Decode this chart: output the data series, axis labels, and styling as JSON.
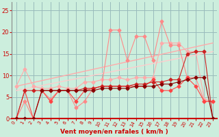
{
  "bg_color": "#cceedd",
  "grid_color": "#99bbbb",
  "xlabel": "Vent moyen/en rafales ( km/h )",
  "xlabel_color": "#cc0000",
  "tick_color": "#cc0000",
  "xlim": [
    -0.5,
    23.5
  ],
  "ylim": [
    0,
    27
  ],
  "yticks": [
    0,
    5,
    10,
    15,
    20,
    25
  ],
  "xticks": [
    0,
    1,
    2,
    3,
    4,
    5,
    6,
    7,
    8,
    9,
    10,
    11,
    12,
    13,
    14,
    15,
    16,
    17,
    18,
    19,
    20,
    21,
    22,
    23
  ],
  "line_pale1_x": [
    0,
    1,
    2,
    3,
    4,
    5,
    6,
    7,
    8,
    9,
    10,
    11,
    12,
    13,
    14,
    15,
    16,
    17,
    18,
    19,
    20,
    21,
    22,
    23
  ],
  "line_pale1_y": [
    7.5,
    11.5,
    7.5,
    7.0,
    7.0,
    7.5,
    7.0,
    7.0,
    8.5,
    8.5,
    9.0,
    9.0,
    9.5,
    9.0,
    9.5,
    9.5,
    9.5,
    17.5,
    17.5,
    17.5,
    15.5,
    15.5,
    4.5,
    4.0
  ],
  "line_pale1_color": "#ffaaaa",
  "line_pale2_x": [
    0,
    1,
    2,
    3,
    4,
    5,
    6,
    7,
    8,
    9,
    10,
    11,
    12,
    13,
    14,
    15,
    16,
    17,
    18,
    19,
    20,
    21,
    22,
    23
  ],
  "line_pale2_y": [
    0.0,
    4.0,
    0.0,
    6.5,
    4.5,
    6.5,
    6.5,
    2.5,
    4.0,
    7.0,
    7.5,
    20.5,
    20.5,
    13.5,
    19.0,
    19.0,
    13.5,
    22.5,
    17.0,
    17.0,
    9.5,
    9.5,
    4.0,
    4.0
  ],
  "line_pale2_color": "#ff8888",
  "trend1_x": [
    0,
    23
  ],
  "trend1_y": [
    7.5,
    17.5
  ],
  "trend1_color": "#ffaaaa",
  "trend2_x": [
    0,
    23
  ],
  "trend2_y": [
    6.5,
    15.5
  ],
  "trend2_color": "#ffcccc",
  "line_med1_x": [
    0,
    1,
    2,
    3,
    4,
    5,
    6,
    7,
    8,
    9,
    10,
    11,
    12,
    13,
    14,
    15,
    16,
    17,
    18,
    19,
    20,
    21,
    22,
    23
  ],
  "line_med1_y": [
    0.0,
    6.5,
    0.0,
    6.5,
    4.0,
    6.5,
    6.5,
    4.0,
    6.5,
    7.0,
    7.5,
    7.5,
    7.5,
    7.5,
    7.5,
    7.5,
    9.0,
    6.5,
    6.5,
    7.5,
    9.5,
    7.5,
    4.0,
    4.0
  ],
  "line_med1_color": "#ff4444",
  "line_med2_x": [
    0,
    1,
    2,
    3,
    4,
    5,
    6,
    7,
    8,
    9,
    10,
    11,
    12,
    13,
    14,
    15,
    16,
    17,
    18,
    19,
    20,
    21,
    22,
    23
  ],
  "line_med2_y": [
    0.0,
    6.5,
    6.5,
    6.5,
    6.5,
    6.5,
    6.5,
    6.5,
    7.0,
    7.0,
    7.5,
    7.5,
    7.5,
    7.5,
    8.0,
    8.0,
    8.5,
    8.5,
    9.0,
    9.0,
    15.0,
    15.5,
    15.5,
    0.0
  ],
  "line_med2_color": "#cc2222",
  "line_dark1_x": [
    0,
    1,
    2,
    3,
    4,
    5,
    6,
    7,
    8,
    9,
    10,
    11,
    12,
    13,
    14,
    15,
    16,
    17,
    18,
    19,
    20,
    21,
    22,
    23
  ],
  "line_dark1_y": [
    0.0,
    0.0,
    0.0,
    6.5,
    6.5,
    6.5,
    6.5,
    6.5,
    6.5,
    6.5,
    7.0,
    7.0,
    7.0,
    7.0,
    7.5,
    7.5,
    7.5,
    8.0,
    8.0,
    8.5,
    9.0,
    9.5,
    9.5,
    0.0
  ],
  "line_dark1_color": "#880000"
}
